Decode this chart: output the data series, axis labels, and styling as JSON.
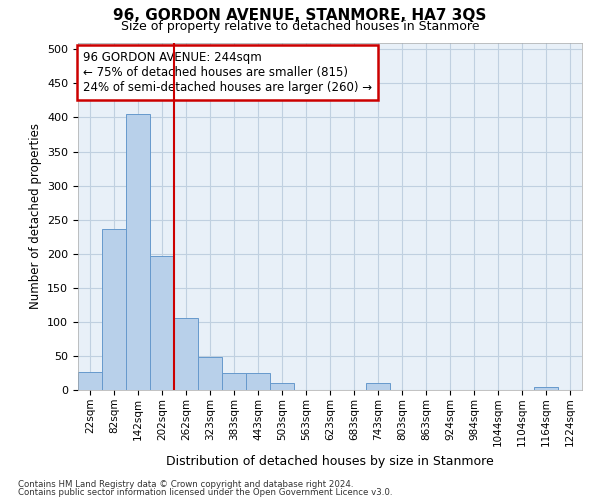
{
  "title": "96, GORDON AVENUE, STANMORE, HA7 3QS",
  "subtitle": "Size of property relative to detached houses in Stanmore",
  "xlabel": "Distribution of detached houses by size in Stanmore",
  "ylabel": "Number of detached properties",
  "bar_labels": [
    "22sqm",
    "82sqm",
    "142sqm",
    "202sqm",
    "262sqm",
    "323sqm",
    "383sqm",
    "443sqm",
    "503sqm",
    "563sqm",
    "623sqm",
    "683sqm",
    "743sqm",
    "803sqm",
    "863sqm",
    "924sqm",
    "984sqm",
    "1044sqm",
    "1104sqm",
    "1164sqm",
    "1224sqm"
  ],
  "bar_values": [
    27,
    237,
    405,
    197,
    105,
    48,
    25,
    25,
    10,
    0,
    0,
    0,
    10,
    0,
    0,
    0,
    0,
    0,
    0,
    5,
    0
  ],
  "bar_color": "#b8d0ea",
  "bar_edge_color": "#6699cc",
  "vline_x_idx": 4,
  "vline_color": "#cc0000",
  "annotation_title": "96 GORDON AVENUE: 244sqm",
  "annotation_line2": "← 75% of detached houses are smaller (815)",
  "annotation_line3": "24% of semi-detached houses are larger (260) →",
  "annotation_box_color": "#cc0000",
  "ylim": [
    0,
    510
  ],
  "yticks": [
    0,
    50,
    100,
    150,
    200,
    250,
    300,
    350,
    400,
    450,
    500
  ],
  "footnote1": "Contains HM Land Registry data © Crown copyright and database right 2024.",
  "footnote2": "Contains public sector information licensed under the Open Government Licence v3.0.",
  "background_color": "#ffffff",
  "grid_color": "#c0d0e0",
  "ax_bg_color": "#e8f0f8"
}
